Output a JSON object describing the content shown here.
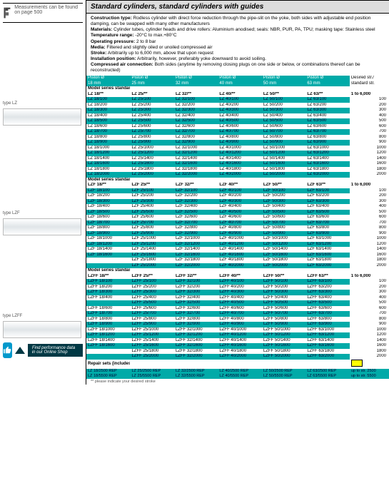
{
  "meas_note": "Measurements\ncan be found on page 500",
  "title": "Standard cylinders, standard cylinders with guides",
  "specs": [
    {
      "l": "Construction type:",
      "v": " Rodless cylinder with direct force reduction through the pipe-slit on the yoke, both sides with adjustable end position damping, can be swapped with many other manufacturers"
    },
    {
      "l": "Materials:",
      "v": " Cylinder tubes, cylinder heads and drive rollers: Aluminium anodised; seals: NBR, PUR, PA, TPU; masking tape: Stainless steel"
    },
    {
      "l": "Temperature range:",
      "v": " -20°C to max.+80°C"
    },
    {
      "l": "Operating pressure:",
      "v": " 2 to 8 bar"
    },
    {
      "l": "Media:",
      "v": " Filtered and slightly oiled or unoiled compressed air"
    },
    {
      "l": "Stroke:",
      "v": " Arbitrarily up to 6,000 mm, above that upon request"
    },
    {
      "l": "Installation position:",
      "v": " Arbitrarily, however, preferably yoke downward to avoid soiling."
    },
    {
      "l": "Compressed air connection:",
      "v": " Both sides (anytime by removing closing plugs on one side or below, or combinations thereof can be reconstructed)"
    }
  ],
  "hdr": [
    "Piston Ø\n18 mm",
    "Piston Ø\n25 mm",
    "Piston Ø\n32 mm",
    "Piston Ø\n40 mm",
    "Piston Ø\n50 mm",
    "Piston Ø\n63 mm",
    "Desired str./\nstandard str."
  ],
  "groups": [
    {
      "sect": "Model series standard",
      "mods": [
        "LZ 18/**",
        "LZ 25/**",
        "LZ 32/**",
        "LZ 40/**",
        "LZ 50/**",
        "LZ 63/**",
        "1 to 6,000"
      ],
      "pref": "LZ ",
      "variants": [
        "18",
        "25",
        "32",
        "40",
        "50",
        "63"
      ],
      "strokes": [
        100,
        200,
        300,
        400,
        500,
        600,
        700,
        800,
        900,
        1000,
        1200,
        1400,
        1600,
        1800,
        2000
      ],
      "blank_first": []
    },
    {
      "sect": "Model series standard with sliding guide (LZF)",
      "mods": [
        "LZF 18/**",
        "LZF 25/**",
        "LZF 32/**",
        "LZF 40/**",
        "LZF 50/**",
        "LZF 63/**",
        "1 to 6,000"
      ],
      "pref": "LZF ",
      "variants": [
        "18",
        "25",
        "32",
        "40",
        "50",
        "63"
      ],
      "strokes": [
        100,
        200,
        300,
        400,
        500,
        600,
        700,
        800,
        900,
        1000,
        1200,
        1400,
        1600,
        1800,
        2000
      ],
      "blank_first": [
        1800,
        2000
      ]
    },
    {
      "sect": "Model series standard with double sliding guide for large loads (LZFF)",
      "mods": [
        "LZFF 18/**",
        "LZFF 25/**",
        "LZFF 32/**",
        "LZFF 40/**",
        "LZFF 50/**",
        "LZFF 63/**",
        "1 to 6,000"
      ],
      "pref": "LZFF ",
      "variants": [
        "18",
        "25",
        "32",
        "40",
        "50",
        "63"
      ],
      "strokes": [
        100,
        200,
        300,
        400,
        500,
        600,
        700,
        800,
        900,
        1000,
        1200,
        1400,
        1600,
        1800,
        2000
      ],
      "blank_first": [
        500,
        1800,
        2000
      ]
    }
  ],
  "repair_hdr": "Repair sets (includes all the wear parts)",
  "repair_rows": [
    [
      "LZ 18/2500 REP",
      "LZ 25/2500 REP",
      "LZ 32/2500 REP",
      "LZ 40/2500 REP",
      "LZ 50/2500 REP",
      "LZ 63/2500 REP",
      "up to str. 2500"
    ],
    [
      "LZ 18/5500 REP",
      "LZ 25/5500 REP",
      "LZ 32/5500 REP",
      "LZ 40/5500 REP",
      "LZ 50/5500 REP",
      "LZ 63/5500 REP",
      "up to str. 5500"
    ]
  ],
  "footnote": "** please indicate your desired stroke",
  "types": [
    "type LZ",
    "type LZF",
    "type LZFF"
  ],
  "badge": "Find performance data\nin our Online Shop",
  "tip_label": "TIP"
}
